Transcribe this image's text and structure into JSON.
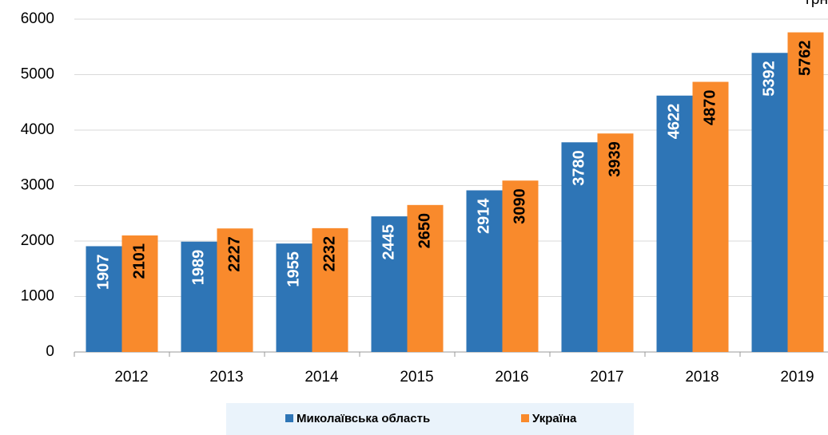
{
  "chart_data": {
    "type": "bar",
    "unit": "грн",
    "categories": [
      "2012",
      "2013",
      "2014",
      "2015",
      "2016",
      "2017",
      "2018",
      "2019"
    ],
    "series": [
      {
        "name": "Миколаївська область",
        "color": "#2e75b6",
        "label_color": "#ffffff",
        "values": [
          1907,
          1989,
          1955,
          2445,
          2914,
          3780,
          4622,
          5392
        ]
      },
      {
        "name": "Україна",
        "color": "#f98a2c",
        "label_color": "#000000",
        "values": [
          2101,
          2227,
          2232,
          2650,
          3090,
          3939,
          4870,
          5762
        ]
      }
    ],
    "ylim": [
      0,
      6000
    ],
    "yticks": [
      0,
      1000,
      2000,
      3000,
      4000,
      5000,
      6000
    ],
    "grid": true
  }
}
